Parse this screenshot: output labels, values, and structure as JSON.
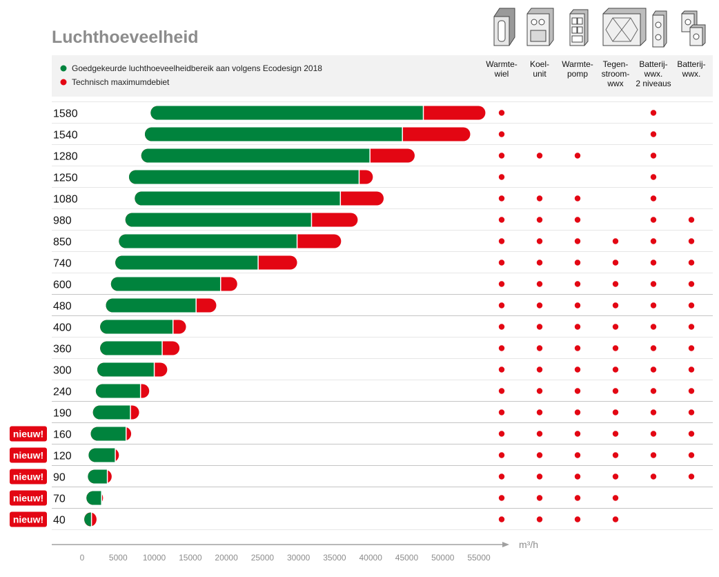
{
  "chart_data": {
    "type": "bar",
    "title": "Luchthoeveelheid",
    "unit": "m³/h",
    "legend": [
      {
        "name": "Goedgekeurde luchthoeveelheidbereik aan volgens Ecodesign 2018",
        "color": "#00833d"
      },
      {
        "name": "Technisch maximumdebiet",
        "color": "#e30613"
      }
    ],
    "x_ticks": [
      0,
      5000,
      10000,
      15000,
      20000,
      25000,
      30000,
      35000,
      40000,
      45000,
      50000,
      55000
    ],
    "xlim": [
      0,
      58000
    ],
    "columns": [
      {
        "key": "warmtewiel",
        "lines": [
          "Warmte-",
          "wiel"
        ]
      },
      {
        "key": "koelunit",
        "lines": [
          "Koel-",
          "unit"
        ]
      },
      {
        "key": "warmtepomp",
        "lines": [
          "Warmte-",
          "pomp"
        ]
      },
      {
        "key": "tegenstroom",
        "lines": [
          "Tegen-",
          "stroom-",
          "wwx"
        ]
      },
      {
        "key": "batterij2",
        "lines": [
          "Batterij-",
          "wwx.",
          "2 niveaus"
        ]
      },
      {
        "key": "batterij",
        "lines": [
          "Batterij-",
          "wwx."
        ]
      }
    ],
    "badge_label": "nieuw!",
    "rows": [
      {
        "label": "1580",
        "start": 9500,
        "eco_end": 47300,
        "max": 55900,
        "nieuw": false,
        "dots": [
          1,
          0,
          0,
          0,
          1,
          0
        ]
      },
      {
        "label": "1540",
        "start": 8700,
        "eco_end": 44400,
        "max": 53800,
        "nieuw": false,
        "dots": [
          1,
          0,
          0,
          0,
          1,
          0
        ]
      },
      {
        "label": "1280",
        "start": 8200,
        "eco_end": 39900,
        "max": 46100,
        "nieuw": false,
        "dots": [
          1,
          1,
          1,
          0,
          1,
          0
        ]
      },
      {
        "label": "1250",
        "start": 6500,
        "eco_end": 38400,
        "max": 40300,
        "nieuw": false,
        "dots": [
          1,
          0,
          0,
          0,
          1,
          0
        ]
      },
      {
        "label": "1080",
        "start": 7300,
        "eco_end": 35800,
        "max": 41800,
        "nieuw": false,
        "dots": [
          1,
          1,
          1,
          0,
          1,
          0
        ]
      },
      {
        "label": "980",
        "start": 6000,
        "eco_end": 31800,
        "max": 38200,
        "nieuw": false,
        "dots": [
          1,
          1,
          1,
          0,
          1,
          1
        ]
      },
      {
        "label": "850",
        "start": 5100,
        "eco_end": 29800,
        "max": 35900,
        "nieuw": false,
        "dots": [
          1,
          1,
          1,
          1,
          1,
          1
        ]
      },
      {
        "label": "740",
        "start": 4600,
        "eco_end": 24400,
        "max": 29800,
        "nieuw": false,
        "dots": [
          1,
          1,
          1,
          1,
          1,
          1
        ]
      },
      {
        "label": "600",
        "start": 4000,
        "eco_end": 19200,
        "max": 21500,
        "nieuw": false,
        "dots": [
          1,
          1,
          1,
          1,
          1,
          1
        ]
      },
      {
        "label": "480",
        "start": 3300,
        "eco_end": 15800,
        "max": 18600,
        "nieuw": false,
        "dots": [
          1,
          1,
          1,
          1,
          1,
          1
        ]
      },
      {
        "label": "400",
        "start": 2500,
        "eco_end": 12600,
        "max": 14400,
        "nieuw": false,
        "dots": [
          1,
          1,
          1,
          1,
          1,
          1
        ]
      },
      {
        "label": "360",
        "start": 2500,
        "eco_end": 11100,
        "max": 13500,
        "nieuw": false,
        "dots": [
          1,
          1,
          1,
          1,
          1,
          1
        ]
      },
      {
        "label": "300",
        "start": 2100,
        "eco_end": 10000,
        "max": 11800,
        "nieuw": false,
        "dots": [
          1,
          1,
          1,
          1,
          1,
          1
        ]
      },
      {
        "label": "240",
        "start": 1900,
        "eco_end": 8100,
        "max": 9300,
        "nieuw": false,
        "dots": [
          1,
          1,
          1,
          1,
          1,
          1
        ]
      },
      {
        "label": "190",
        "start": 1500,
        "eco_end": 6700,
        "max": 7900,
        "nieuw": false,
        "dots": [
          1,
          1,
          1,
          1,
          1,
          1
        ]
      },
      {
        "label": "160",
        "start": 1200,
        "eco_end": 6100,
        "max": 6800,
        "nieuw": true,
        "dots": [
          1,
          1,
          1,
          1,
          1,
          1
        ]
      },
      {
        "label": "120",
        "start": 900,
        "eco_end": 4600,
        "max": 5100,
        "nieuw": true,
        "dots": [
          1,
          1,
          1,
          1,
          1,
          1
        ]
      },
      {
        "label": "90",
        "start": 800,
        "eco_end": 3500,
        "max": 4100,
        "nieuw": true,
        "dots": [
          1,
          1,
          1,
          1,
          1,
          1
        ]
      },
      {
        "label": "70",
        "start": 600,
        "eco_end": 2700,
        "max": 2900,
        "nieuw": true,
        "dots": [
          1,
          1,
          1,
          1,
          0,
          0
        ]
      },
      {
        "label": "40",
        "start": 300,
        "eco_end": 1300,
        "max": 2000,
        "nieuw": true,
        "dots": [
          1,
          1,
          1,
          1,
          0,
          0
        ]
      }
    ]
  }
}
